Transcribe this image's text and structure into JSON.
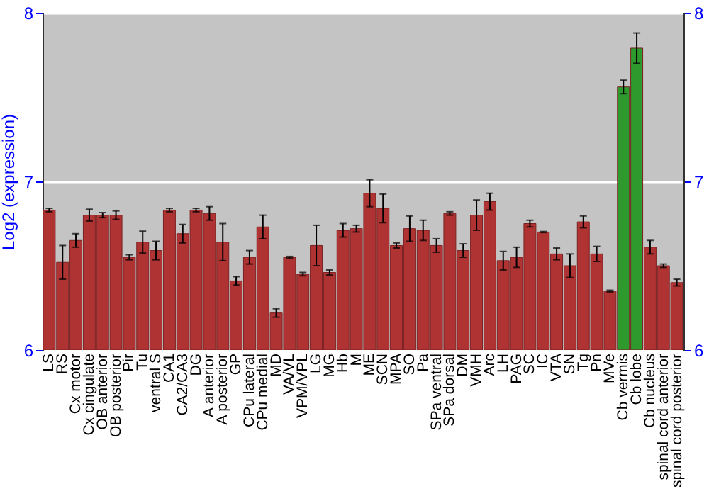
{
  "chart_data": {
    "type": "bar",
    "ylabel": "Log2 (expression)",
    "categories": [
      "LS",
      "RS",
      "Cx motor",
      "Cx cingulate",
      "OB anterior",
      "OB posterior",
      "Pir",
      "Tu",
      "ventral S",
      "CA1",
      "CA2/CA3",
      "DG",
      "A anterior",
      "A posterior",
      "GP",
      "CPu lateral",
      "CPu medial",
      "MD",
      "VA/VL",
      "VPM/VPL",
      "LG",
      "MG",
      "Hb",
      "M",
      "ME",
      "SCN",
      "MPA",
      "SO",
      "Pa",
      "SPa ventral",
      "SPa dorsal",
      "DM",
      "VMH",
      "Arc",
      "LH",
      "PAG",
      "SC",
      "IC",
      "VTA",
      "SN",
      "Tg",
      "Pn",
      "MVe",
      "Cb vermis",
      "Cb lobe",
      "Cb nucleus",
      "spinal cord anterior",
      "spinal cord posterior"
    ],
    "values": [
      6.83,
      6.52,
      6.65,
      6.8,
      6.8,
      6.8,
      6.55,
      6.64,
      6.59,
      6.83,
      6.69,
      6.83,
      6.81,
      6.64,
      6.41,
      6.55,
      6.73,
      6.22,
      6.55,
      6.45,
      6.62,
      6.46,
      6.71,
      6.72,
      6.93,
      6.84,
      6.62,
      6.72,
      6.71,
      6.62,
      6.81,
      6.59,
      6.8,
      6.88,
      6.53,
      6.55,
      6.75,
      6.7,
      6.57,
      6.5,
      6.76,
      6.57,
      6.35,
      7.56,
      7.79,
      6.61,
      6.5,
      6.4
    ],
    "errors": [
      0.01,
      0.1,
      0.04,
      0.035,
      0.015,
      0.025,
      0.015,
      0.065,
      0.055,
      0.01,
      0.055,
      0.01,
      0.04,
      0.11,
      0.025,
      0.04,
      0.07,
      0.025,
      0.005,
      0.01,
      0.12,
      0.015,
      0.04,
      0.02,
      0.08,
      0.085,
      0.015,
      0.075,
      0.06,
      0.04,
      0.01,
      0.04,
      0.09,
      0.05,
      0.055,
      0.06,
      0.02,
      0.003,
      0.035,
      0.07,
      0.035,
      0.045,
      0.005,
      0.04,
      0.09,
      0.04,
      0.01,
      0.02
    ],
    "colors": [
      "#b03333",
      "#b03333",
      "#b03333",
      "#b03333",
      "#b03333",
      "#b03333",
      "#b03333",
      "#b03333",
      "#b03333",
      "#b03333",
      "#b03333",
      "#b03333",
      "#b03333",
      "#b03333",
      "#b03333",
      "#b03333",
      "#b03333",
      "#b03333",
      "#b03333",
      "#b03333",
      "#b03333",
      "#b03333",
      "#b03333",
      "#b03333",
      "#b03333",
      "#b03333",
      "#b03333",
      "#b03333",
      "#b03333",
      "#b03333",
      "#b03333",
      "#b03333",
      "#b03333",
      "#b03333",
      "#b03333",
      "#b03333",
      "#b03333",
      "#b03333",
      "#b03333",
      "#b03333",
      "#b03333",
      "#b03333",
      "#b03333",
      "#2e9a2e",
      "#2e9a2e",
      "#b03333",
      "#b03333",
      "#b03333"
    ],
    "ylim": [
      6,
      8
    ],
    "yticks": [
      6,
      7,
      8
    ],
    "y2lim": [
      6,
      8
    ],
    "y2ticks": [
      6,
      7,
      8
    ],
    "grid": "y"
  }
}
